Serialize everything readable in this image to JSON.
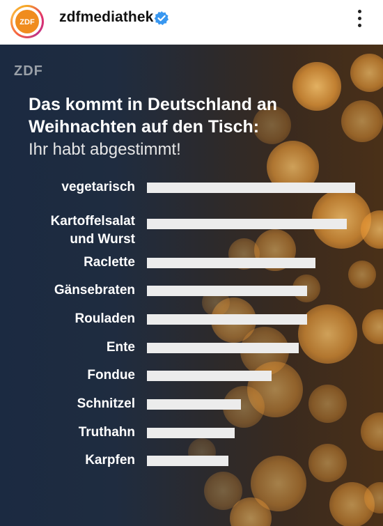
{
  "header": {
    "username": "zdfmediathek",
    "avatar_label": "ZDF",
    "verified_icon": "verified-badge-icon",
    "more_icon": "more-vertical-icon"
  },
  "post": {
    "logo": "ZDF",
    "title_line1": "Das kommt in Deutschland an",
    "title_line2": "Weihnachten auf den Tisch:",
    "subtitle": "Ihr habt abgestimmt!"
  },
  "colors": {
    "bar": "#ececec",
    "bokeh": "#f2a03a",
    "avatar": "#f08c1e",
    "verified": "#3897f0"
  },
  "chart_data": {
    "type": "bar",
    "orientation": "horizontal",
    "categories": [
      "vegetarisch",
      "Kartoffelsalat und Wurst",
      "Raclette",
      "Gänsebraten",
      "Rouladen",
      "Ente",
      "Fondue",
      "Schnitzel",
      "Truthahn",
      "Karpfen"
    ],
    "category_lines": [
      [
        "vegetarisch"
      ],
      [
        "Kartoffelsalat",
        "und Wurst"
      ],
      [
        "Raclette"
      ],
      [
        "Gänsebraten"
      ],
      [
        "Rouladen"
      ],
      [
        "Ente"
      ],
      [
        "Fondue"
      ],
      [
        "Schnitzel"
      ],
      [
        "Truthahn"
      ],
      [
        "Karpfen"
      ]
    ],
    "values": [
      100,
      96,
      81,
      77,
      77,
      73,
      60,
      45,
      42,
      39
    ],
    "xlim": [
      0,
      100
    ],
    "grid": false,
    "legend": "none",
    "value_labels": false
  }
}
